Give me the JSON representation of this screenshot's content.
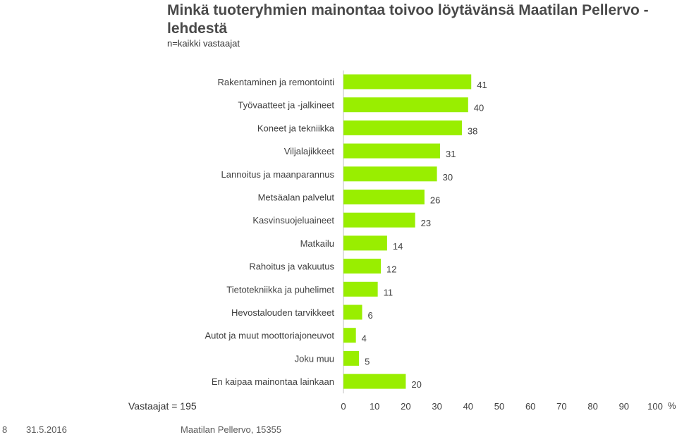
{
  "page": {
    "title": "Minkä tuoteryhmien mainontaa toivoo löytävänsä Maatilan Pellervo -lehdestä",
    "subtitle": "n=kaikki vastaajat",
    "respondents": "Vastaajat = 195",
    "footer_page": "8",
    "footer_date": "31.5.2016",
    "footer_source": "Maatilan Pellervo, 15355"
  },
  "chart_data": {
    "type": "bar",
    "orientation": "horizontal",
    "categories": [
      "Rakentaminen ja remontointi",
      "Työvaatteet ja -jalkineet",
      "Koneet ja tekniikka",
      "Viljalajikkeet",
      "Lannoitus ja maanparannus",
      "Metsäalan palvelut",
      "Kasvinsuojeluaineet",
      "Matkailu",
      "Rahoitus ja vakuutus",
      "Tietotekniikka ja puhelimet",
      "Hevostalouden tarvikkeet",
      "Autot ja muut moottoriajoneuvot",
      "Joku muu",
      "En kaipaa mainontaa lainkaan"
    ],
    "values": [
      41,
      40,
      38,
      31,
      30,
      26,
      23,
      14,
      12,
      11,
      6,
      4,
      5,
      20
    ],
    "xlim": [
      0,
      100
    ],
    "xticks": [
      0,
      10,
      20,
      30,
      40,
      50,
      60,
      70,
      80,
      90,
      100
    ],
    "xunit": "%",
    "grid": false,
    "bar_color": "#99ee00"
  }
}
